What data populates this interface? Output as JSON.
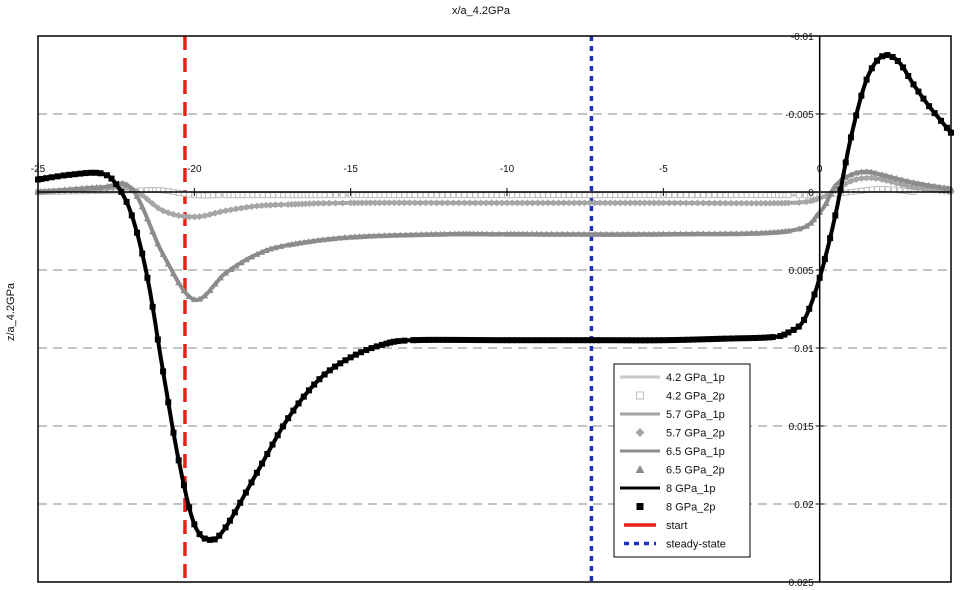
{
  "chart_data": {
    "type": "line",
    "title": "x/a_4.2GPa",
    "xlabel": "",
    "ylabel": "z/a_4.2GPa",
    "xlim": [
      -25,
      4.2
    ],
    "ylim": [
      -0.01,
      0.025
    ],
    "y_inverted": true,
    "x_ticks": [
      -25,
      -20,
      -15,
      -10,
      -5,
      0
    ],
    "x_tick_labels": [
      "-25",
      "-20",
      "-15",
      "-10",
      "-5",
      "0"
    ],
    "y_ticks": [
      -0.01,
      -0.005,
      0,
      0.005,
      0.01,
      0.015,
      0.02,
      0.025
    ],
    "y_tick_labels": [
      "-0.01",
      "-0.005",
      "0",
      "0.005",
      "0.01",
      "0.015",
      "0.02",
      "0.025"
    ],
    "grid": "horizontal dashed",
    "legend_position": "bottom-right",
    "series": [
      {
        "name": "4.2 GPa_1p",
        "style": "line",
        "color": "#c8c8c8",
        "x": [
          -25,
          -22,
          -21,
          -20,
          -19,
          -17,
          -15,
          -10,
          -5,
          -1,
          0,
          1,
          2,
          3
        ],
        "y": [
          0.0,
          -0.0001,
          -0.0001,
          0.0002,
          0.0002,
          0.0002,
          0.0002,
          0.0002,
          0.0002,
          0.0002,
          0.0002,
          0.0,
          -0.0002,
          0.0
        ]
      },
      {
        "name": "4.2 GPa_2p",
        "style": "marker",
        "marker": "square-open",
        "color": "#bdbdbd",
        "x": [
          -25,
          -22,
          -21,
          -20,
          -19,
          -17,
          -15,
          -10,
          -5,
          -1,
          0,
          1,
          2,
          3
        ],
        "y": [
          0.0,
          -0.0001,
          -0.0001,
          0.0002,
          0.0002,
          0.0002,
          0.0002,
          0.0002,
          0.0002,
          0.0002,
          0.0002,
          0.0,
          -0.0002,
          0.0
        ]
      },
      {
        "name": "5.7 GPa_1p",
        "style": "line",
        "color": "#a6a6a6",
        "x": [
          -25,
          -23,
          -22,
          -21,
          -20,
          -19,
          -18,
          -17,
          -15,
          -10,
          -5,
          -1,
          0,
          0.5,
          1,
          1.5,
          2,
          3,
          4.2
        ],
        "y": [
          0.0,
          -0.0002,
          -0.0002,
          0.0012,
          0.0016,
          0.0012,
          0.0009,
          0.0008,
          0.0007,
          0.0007,
          0.0007,
          0.0007,
          0.0004,
          -0.0001,
          -0.0007,
          -0.0009,
          -0.0008,
          -0.0003,
          0.0
        ]
      },
      {
        "name": "5.7 GPa_2p",
        "style": "marker",
        "marker": "diamond",
        "color": "#a6a6a6",
        "x": [
          -25,
          -23,
          -22,
          -21,
          -20,
          -19,
          -18,
          -17,
          -15,
          -10,
          -5,
          -1,
          0,
          0.5,
          1,
          1.5,
          2,
          3,
          4.2
        ],
        "y": [
          0.0,
          -0.0002,
          -0.0002,
          0.0012,
          0.0016,
          0.0012,
          0.0009,
          0.0008,
          0.0007,
          0.0007,
          0.0007,
          0.0007,
          0.0004,
          -0.0001,
          -0.0007,
          -0.0009,
          -0.0008,
          -0.0003,
          0.0
        ]
      },
      {
        "name": "6.5 GPa_1p",
        "style": "line",
        "color": "#8c8c8c",
        "x": [
          -25,
          -23,
          -22,
          -21,
          -20,
          -19,
          -18,
          -17,
          -15,
          -12,
          -10,
          -5,
          -1,
          0,
          0.5,
          1,
          1.5,
          2,
          3,
          4.2
        ],
        "y": [
          0.0,
          -0.0003,
          -0.0002,
          0.004,
          0.0069,
          0.0052,
          0.004,
          0.0034,
          0.0029,
          0.0027,
          0.0027,
          0.0027,
          0.0025,
          0.0013,
          -0.0004,
          -0.0011,
          -0.0013,
          -0.0011,
          -0.0006,
          -0.0002
        ]
      },
      {
        "name": "6.5 GPa_2p",
        "style": "marker",
        "marker": "triangle",
        "color": "#8c8c8c",
        "x": [
          -25,
          -23,
          -22,
          -21,
          -20,
          -19,
          -18,
          -17,
          -15,
          -12,
          -10,
          -5,
          -1,
          0,
          0.5,
          1,
          1.5,
          2,
          3,
          4.2
        ],
        "y": [
          0.0,
          -0.0003,
          -0.0002,
          0.004,
          0.0069,
          0.0052,
          0.004,
          0.0034,
          0.0029,
          0.0027,
          0.0027,
          0.0027,
          0.0025,
          0.0013,
          -0.0004,
          -0.0011,
          -0.0013,
          -0.0011,
          -0.0006,
          -0.0002
        ]
      },
      {
        "name": "8 GPa_1p",
        "style": "line",
        "color": "#000000",
        "x": [
          -25,
          -24,
          -23,
          -22.5,
          -22,
          -21.5,
          -21,
          -20.5,
          -20,
          -19.5,
          -19,
          -18,
          -17,
          -16,
          -15,
          -14,
          -13,
          -10,
          -7,
          -5,
          -3,
          -1.5,
          -1,
          -0.5,
          0,
          0.5,
          1,
          1.5,
          2,
          2.5,
          3,
          3.5,
          4.2
        ],
        "y": [
          -0.0008,
          -0.0011,
          -0.0012,
          -0.0005,
          0.0015,
          0.0055,
          0.0115,
          0.0172,
          0.0213,
          0.0223,
          0.0215,
          0.018,
          0.0145,
          0.012,
          0.0106,
          0.0098,
          0.0095,
          0.0095,
          0.0095,
          0.0095,
          0.0094,
          0.0093,
          0.009,
          0.0082,
          0.0055,
          0.0015,
          -0.0035,
          -0.0072,
          -0.0087,
          -0.0084,
          -0.0069,
          -0.0055,
          -0.0038
        ]
      },
      {
        "name": "8 GPa_2p",
        "style": "marker",
        "marker": "square-filled",
        "color": "#000000",
        "x": [
          -25,
          -24,
          -23,
          -22.5,
          -22,
          -21.5,
          -21,
          -20.5,
          -20,
          -19.5,
          -19,
          -18,
          -17,
          -16,
          -15,
          -14,
          -13,
          -10,
          -7,
          -5,
          -3,
          -1.5,
          -1,
          -0.5,
          0,
          0.5,
          1,
          1.5,
          2,
          2.5,
          3,
          3.5,
          4.2
        ],
        "y": [
          -0.0008,
          -0.0011,
          -0.0012,
          -0.0005,
          0.0015,
          0.0055,
          0.0115,
          0.0172,
          0.0213,
          0.0223,
          0.0215,
          0.018,
          0.0145,
          0.012,
          0.0106,
          0.0098,
          0.0095,
          0.0095,
          0.0095,
          0.0095,
          0.0094,
          0.0093,
          0.009,
          0.0082,
          0.0055,
          0.0015,
          -0.0035,
          -0.0072,
          -0.0087,
          -0.0084,
          -0.0069,
          -0.0055,
          -0.0038
        ]
      }
    ],
    "vertical_lines": [
      {
        "name": "start",
        "x": -20.3,
        "color": "#e8201a",
        "style": "dashed"
      },
      {
        "name": "steady-state",
        "x": -7.3,
        "color": "#1f2fbf",
        "style": "dotted"
      }
    ],
    "legend": [
      {
        "label": "4.2 GPa_1p",
        "kind": "line",
        "color": "#c8c8c8"
      },
      {
        "label": "4.2 GPa_2p",
        "kind": "square-open",
        "color": "#bdbdbd"
      },
      {
        "label": "5.7 GPa_1p",
        "kind": "line",
        "color": "#a6a6a6"
      },
      {
        "label": "5.7 GPa_2p",
        "kind": "diamond",
        "color": "#a6a6a6"
      },
      {
        "label": "6.5 GPa_1p",
        "kind": "line",
        "color": "#8c8c8c"
      },
      {
        "label": "6.5 GPa_2p",
        "kind": "triangle",
        "color": "#8c8c8c"
      },
      {
        "label": "8 GPa_1p",
        "kind": "line",
        "color": "#000000"
      },
      {
        "label": "8 GPa_2p",
        "kind": "square-filled",
        "color": "#000000"
      },
      {
        "label": "start",
        "kind": "dash",
        "color": "#e8201a"
      },
      {
        "label": "steady-state",
        "kind": "dot",
        "color": "#1f2fbf"
      }
    ]
  }
}
